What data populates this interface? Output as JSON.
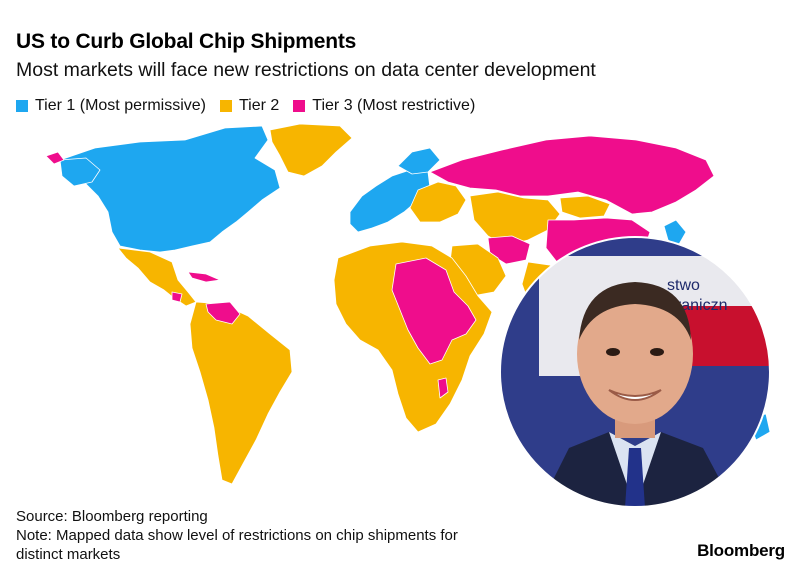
{
  "header": {
    "title": "US to Curb Global Chip Shipments",
    "subtitle": "Most markets will face new restrictions on data center development"
  },
  "legend": [
    {
      "label": "Tier 1 (Most permissive)",
      "color": "#1ea7f0"
    },
    {
      "label": "Tier 2",
      "color": "#f7b500"
    },
    {
      "label": "Tier 3 (Most restrictive)",
      "color": "#ef0d8c"
    }
  ],
  "colors": {
    "tier1": "#1ea7f0",
    "tier2": "#f7b500",
    "tier3": "#ef0d8c",
    "border": "#ffffff"
  },
  "footer": {
    "source": "Source: Bloomberg reporting",
    "note": "Note: Mapped data show level of restrictions on chip shipments for\ndistinct markets"
  },
  "brand": {
    "name": "Bloomberg"
  },
  "photo": {
    "description_icon": "person-portrait",
    "sign_text": "stwo\ngraniczn"
  }
}
